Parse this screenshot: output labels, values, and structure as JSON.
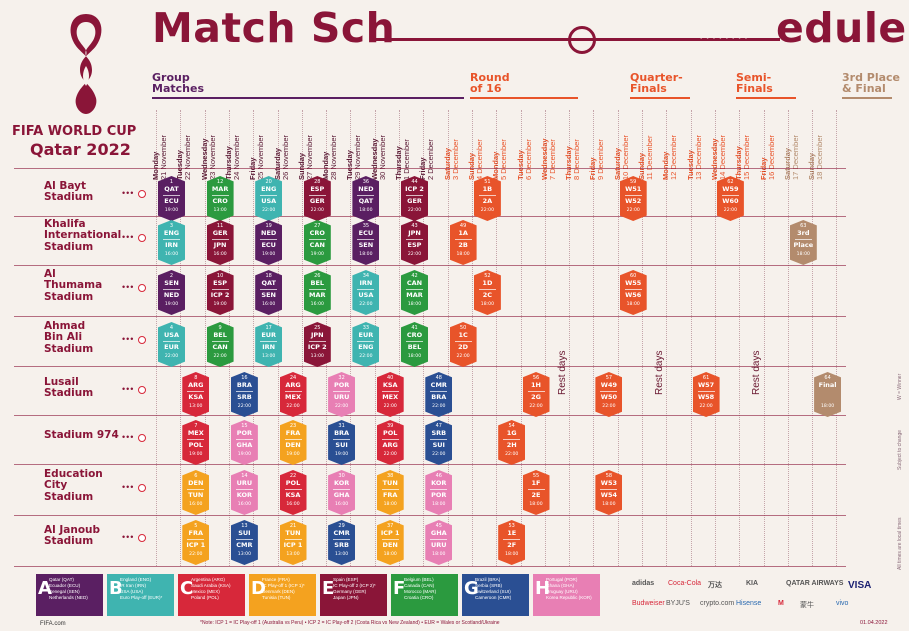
{
  "header": {
    "title_left": "Match Sch",
    "title_right": "edule",
    "dots": "• • • • • • • •",
    "tournament": "FIFA WORLD CUP",
    "host": "Qatar 2022"
  },
  "stages": [
    {
      "label": "Group\nMatches",
      "color": "#5a1f62"
    },
    {
      "label": "Round\nof 16",
      "color": "#e8542a"
    },
    {
      "label": "Quarter-\nFinals",
      "color": "#e8542a"
    },
    {
      "label": "Semi-\nFinals",
      "color": "#e8542a"
    },
    {
      "label": "3rd Place\n& Final",
      "color": "#b38b6d"
    }
  ],
  "dates": [
    {
      "day": "Monday",
      "date": "21 November"
    },
    {
      "day": "Tuesday",
      "date": "22 November"
    },
    {
      "day": "Wednesday",
      "date": "23 November"
    },
    {
      "day": "Thursday",
      "date": "24 November"
    },
    {
      "day": "Friday",
      "date": "25 November"
    },
    {
      "day": "Saturday",
      "date": "26 November"
    },
    {
      "day": "Sunday",
      "date": "27 November"
    },
    {
      "day": "Monday",
      "date": "28 November"
    },
    {
      "day": "Tuesday",
      "date": "29 November"
    },
    {
      "day": "Wednesday",
      "date": "30 November"
    },
    {
      "day": "Thursday",
      "date": "1 December"
    },
    {
      "day": "Friday",
      "date": "2 December"
    },
    {
      "day": "Saturday",
      "date": "3 December"
    },
    {
      "day": "Sunday",
      "date": "4 December"
    },
    {
      "day": "Monday",
      "date": "5 December"
    },
    {
      "day": "Tuesday",
      "date": "6 December"
    },
    {
      "day": "Wednesday",
      "date": "7 December"
    },
    {
      "day": "Thursday",
      "date": "8 December"
    },
    {
      "day": "Friday",
      "date": "9 December"
    },
    {
      "day": "Saturday",
      "date": "10 December"
    },
    {
      "day": "Sunday",
      "date": "11 December"
    },
    {
      "day": "Monday",
      "date": "12 December"
    },
    {
      "day": "Tuesday",
      "date": "13 December"
    },
    {
      "day": "Wednesday",
      "date": "14 December"
    },
    {
      "day": "Thursday",
      "date": "15 December"
    },
    {
      "day": "Friday",
      "date": "16 December"
    },
    {
      "day": "Saturday",
      "date": "17 December"
    },
    {
      "day": "Sunday",
      "date": "18 December"
    }
  ],
  "venues": [
    "Al Bayt\nStadium",
    "Khalifa\nInternational\nStadium",
    "Al\nThumama\nStadium",
    "Ahmad\nBin Ali\nStadium",
    "Lusail\nStadium",
    "Stadium 974",
    "Education\nCity\nStadium",
    "Al Janoub\nStadium"
  ],
  "rest_label": "Rest days",
  "colors": {
    "A": "#5a1f62",
    "B": "#3fb4b0",
    "C": "#d7283a",
    "D": "#f4a21f",
    "E": "#8a1538",
    "F": "#2b9a3f",
    "G": "#2a4f93",
    "H": "#e87fb4",
    "KO": "#e8542a",
    "F3": "#b38b6d"
  },
  "matches": [
    {
      "v": 0,
      "d": 0,
      "g": "A",
      "n": "1",
      "t1": "QAT",
      "t2": "ECU",
      "time": "19:00"
    },
    {
      "v": 0,
      "d": 2,
      "g": "F",
      "n": "12",
      "t1": "MAR",
      "t2": "CRO",
      "time": "13:00"
    },
    {
      "v": 0,
      "d": 4,
      "g": "B",
      "n": "20",
      "t1": "ENG",
      "t2": "USA",
      "time": "22:00"
    },
    {
      "v": 0,
      "d": 6,
      "g": "E",
      "n": "28",
      "t1": "ESP",
      "t2": "GER",
      "time": "22:00"
    },
    {
      "v": 0,
      "d": 8,
      "g": "A",
      "n": "36",
      "t1": "NED",
      "t2": "QAT",
      "time": "18:00"
    },
    {
      "v": 0,
      "d": 10,
      "g": "E",
      "n": "44",
      "t1": "ICP 2",
      "t2": "GER",
      "time": "22:00"
    },
    {
      "v": 0,
      "d": 13,
      "g": "KO",
      "n": "51",
      "t1": "1B",
      "t2": "2A",
      "time": "22:00"
    },
    {
      "v": 0,
      "d": 19,
      "g": "KO",
      "n": "59",
      "t1": "W51",
      "t2": "W52",
      "time": "22:00"
    },
    {
      "v": 0,
      "d": 23,
      "g": "KO",
      "n": "62",
      "t1": "W59",
      "t2": "W60",
      "time": "22:00"
    },
    {
      "v": 1,
      "d": 0,
      "g": "B",
      "n": "3",
      "t1": "ENG",
      "t2": "IRN",
      "time": "16:00"
    },
    {
      "v": 1,
      "d": 2,
      "g": "E",
      "n": "11",
      "t1": "GER",
      "t2": "JPN",
      "time": "16:00"
    },
    {
      "v": 1,
      "d": 4,
      "g": "A",
      "n": "19",
      "t1": "NED",
      "t2": "ECU",
      "time": "19:00"
    },
    {
      "v": 1,
      "d": 6,
      "g": "F",
      "n": "27",
      "t1": "CRO",
      "t2": "CAN",
      "time": "19:00"
    },
    {
      "v": 1,
      "d": 8,
      "g": "A",
      "n": "35",
      "t1": "ECU",
      "t2": "SEN",
      "time": "18:00"
    },
    {
      "v": 1,
      "d": 10,
      "g": "E",
      "n": "43",
      "t1": "JPN",
      "t2": "ESP",
      "time": "22:00"
    },
    {
      "v": 1,
      "d": 12,
      "g": "KO",
      "n": "49",
      "t1": "1A",
      "t2": "2B",
      "time": "18:00"
    },
    {
      "v": 1,
      "d": 26,
      "g": "F3",
      "n": "63",
      "t1": "3rd",
      "t2": "Place",
      "time": "18:00"
    },
    {
      "v": 2,
      "d": 0,
      "g": "A",
      "n": "2",
      "t1": "SEN",
      "t2": "NED",
      "time": "19:00"
    },
    {
      "v": 2,
      "d": 2,
      "g": "E",
      "n": "10",
      "t1": "ESP",
      "t2": "ICP 2",
      "time": "19:00"
    },
    {
      "v": 2,
      "d": 4,
      "g": "A",
      "n": "18",
      "t1": "QAT",
      "t2": "SEN",
      "time": "16:00"
    },
    {
      "v": 2,
      "d": 6,
      "g": "F",
      "n": "26",
      "t1": "BEL",
      "t2": "MAR",
      "time": "16:00"
    },
    {
      "v": 2,
      "d": 8,
      "g": "B",
      "n": "34",
      "t1": "IRN",
      "t2": "USA",
      "time": "22:00"
    },
    {
      "v": 2,
      "d": 10,
      "g": "F",
      "n": "42",
      "t1": "CAN",
      "t2": "MAR",
      "time": "18:00"
    },
    {
      "v": 2,
      "d": 13,
      "g": "KO",
      "n": "52",
      "t1": "1D",
      "t2": "2C",
      "time": "18:00"
    },
    {
      "v": 2,
      "d": 19,
      "g": "KO",
      "n": "60",
      "t1": "W55",
      "t2": "W56",
      "time": "18:00"
    },
    {
      "v": 3,
      "d": 0,
      "g": "B",
      "n": "4",
      "t1": "USA",
      "t2": "EUR",
      "time": "22:00"
    },
    {
      "v": 3,
      "d": 2,
      "g": "F",
      "n": "9",
      "t1": "BEL",
      "t2": "CAN",
      "time": "22:00"
    },
    {
      "v": 3,
      "d": 4,
      "g": "B",
      "n": "17",
      "t1": "EUR",
      "t2": "IRN",
      "time": "13:00"
    },
    {
      "v": 3,
      "d": 6,
      "g": "E",
      "n": "25",
      "t1": "JPN",
      "t2": "ICP 2",
      "time": "13:00"
    },
    {
      "v": 3,
      "d": 8,
      "g": "B",
      "n": "33",
      "t1": "EUR",
      "t2": "ENG",
      "time": "22:00"
    },
    {
      "v": 3,
      "d": 10,
      "g": "F",
      "n": "41",
      "t1": "CRO",
      "t2": "BEL",
      "time": "18:00"
    },
    {
      "v": 3,
      "d": 12,
      "g": "KO",
      "n": "50",
      "t1": "1C",
      "t2": "2D",
      "time": "22:00"
    },
    {
      "v": 4,
      "d": 1,
      "g": "C",
      "n": "8",
      "t1": "ARG",
      "t2": "KSA",
      "time": "13:00"
    },
    {
      "v": 4,
      "d": 3,
      "g": "G",
      "n": "16",
      "t1": "BRA",
      "t2": "SRB",
      "time": "22:00"
    },
    {
      "v": 4,
      "d": 5,
      "g": "C",
      "n": "24",
      "t1": "ARG",
      "t2": "MEX",
      "time": "22:00"
    },
    {
      "v": 4,
      "d": 7,
      "g": "H",
      "n": "32",
      "t1": "POR",
      "t2": "URU",
      "time": "22:00"
    },
    {
      "v": 4,
      "d": 9,
      "g": "C",
      "n": "40",
      "t1": "KSA",
      "t2": "MEX",
      "time": "22:00"
    },
    {
      "v": 4,
      "d": 11,
      "g": "G",
      "n": "48",
      "t1": "CMR",
      "t2": "BRA",
      "time": "22:00"
    },
    {
      "v": 4,
      "d": 15,
      "g": "KO",
      "n": "56",
      "t1": "1H",
      "t2": "2G",
      "time": "22:00"
    },
    {
      "v": 4,
      "d": 18,
      "g": "KO",
      "n": "57",
      "t1": "W49",
      "t2": "W50",
      "time": "22:00"
    },
    {
      "v": 4,
      "d": 22,
      "g": "KO",
      "n": "61",
      "t1": "W57",
      "t2": "W58",
      "time": "22:00"
    },
    {
      "v": 4,
      "d": 27,
      "g": "F3",
      "n": "64",
      "t1": "Final",
      "t2": "",
      "time": "18:00"
    },
    {
      "v": 5,
      "d": 1,
      "g": "C",
      "n": "7",
      "t1": "MEX",
      "t2": "POL",
      "time": "19:00"
    },
    {
      "v": 5,
      "d": 3,
      "g": "H",
      "n": "15",
      "t1": "POR",
      "t2": "GHA",
      "time": "19:00"
    },
    {
      "v": 5,
      "d": 5,
      "g": "D",
      "n": "23",
      "t1": "FRA",
      "t2": "DEN",
      "time": "19:00"
    },
    {
      "v": 5,
      "d": 7,
      "g": "G",
      "n": "31",
      "t1": "BRA",
      "t2": "SUI",
      "time": "19:00"
    },
    {
      "v": 5,
      "d": 9,
      "g": "C",
      "n": "39",
      "t1": "POL",
      "t2": "ARG",
      "time": "22:00"
    },
    {
      "v": 5,
      "d": 11,
      "g": "G",
      "n": "47",
      "t1": "SRB",
      "t2": "SUI",
      "time": "22:00"
    },
    {
      "v": 5,
      "d": 14,
      "g": "KO",
      "n": "54",
      "t1": "1G",
      "t2": "2H",
      "time": "22:00"
    },
    {
      "v": 6,
      "d": 1,
      "g": "D",
      "n": "6",
      "t1": "DEN",
      "t2": "TUN",
      "time": "16:00"
    },
    {
      "v": 6,
      "d": 3,
      "g": "H",
      "n": "14",
      "t1": "URU",
      "t2": "KOR",
      "time": "16:00"
    },
    {
      "v": 6,
      "d": 5,
      "g": "C",
      "n": "22",
      "t1": "POL",
      "t2": "KSA",
      "time": "16:00"
    },
    {
      "v": 6,
      "d": 7,
      "g": "H",
      "n": "30",
      "t1": "KOR",
      "t2": "GHA",
      "time": "16:00"
    },
    {
      "v": 6,
      "d": 9,
      "g": "D",
      "n": "38",
      "t1": "TUN",
      "t2": "FRA",
      "time": "18:00"
    },
    {
      "v": 6,
      "d": 11,
      "g": "H",
      "n": "46",
      "t1": "KOR",
      "t2": "POR",
      "time": "18:00"
    },
    {
      "v": 6,
      "d": 15,
      "g": "KO",
      "n": "55",
      "t1": "1F",
      "t2": "2E",
      "time": "18:00"
    },
    {
      "v": 6,
      "d": 18,
      "g": "KO",
      "n": "58",
      "t1": "W53",
      "t2": "W54",
      "time": "18:00"
    },
    {
      "v": 7,
      "d": 1,
      "g": "D",
      "n": "5",
      "t1": "FRA",
      "t2": "ICP 1",
      "time": "22:00"
    },
    {
      "v": 7,
      "d": 3,
      "g": "G",
      "n": "13",
      "t1": "SUI",
      "t2": "CMR",
      "time": "13:00"
    },
    {
      "v": 7,
      "d": 5,
      "g": "D",
      "n": "21",
      "t1": "TUN",
      "t2": "ICP 1",
      "time": "13:00"
    },
    {
      "v": 7,
      "d": 7,
      "g": "G",
      "n": "29",
      "t1": "CMR",
      "t2": "SRB",
      "time": "13:00"
    },
    {
      "v": 7,
      "d": 9,
      "g": "D",
      "n": "37",
      "t1": "ICP 1",
      "t2": "DEN",
      "time": "18:00"
    },
    {
      "v": 7,
      "d": 11,
      "g": "H",
      "n": "45",
      "t1": "GHA",
      "t2": "URU",
      "time": "18:00"
    },
    {
      "v": 7,
      "d": 14,
      "g": "KO",
      "n": "53",
      "t1": "1E",
      "t2": "2F",
      "time": "18:00"
    }
  ],
  "legend": [
    {
      "g": "A",
      "text": "Qatar (QAT)\nEcuador (ECU)\nSenegal (SEN)\nNetherlands (NED)"
    },
    {
      "g": "B",
      "text": "England (ENG)\nIR Iran (IRN)\nUSA (USA)\nEuro Play-off (EUR)*"
    },
    {
      "g": "C",
      "text": "Argentina (ARG)\nSaudi Arabia (KSA)\nMexico (MEX)\nPoland (POL)"
    },
    {
      "g": "D",
      "text": "France (FRA)\nIC Play-off 1 (ICP 1)*\nDenmark (DEN)\nTunisia (TUN)"
    },
    {
      "g": "E",
      "text": "Spain (ESP)\nIC Play-off 2 (ICP 2)*\nGermany (GER)\nJapan (JPN)"
    },
    {
      "g": "F",
      "text": "Belgium (BEL)\nCanada (CAN)\nMorocco (MAR)\nCroatia (CRO)"
    },
    {
      "g": "G",
      "text": "Brazil (BRA)\nSerbia (SRB)\nSwitzerland (SUI)\nCameroon (CMR)"
    },
    {
      "g": "H",
      "text": "Portugal (POR)\nGhana (GHA)\nUruguay (URU)\nKorea Republic (KOR)"
    }
  ],
  "sponsors": [
    "adidas",
    "Coca-Cola",
    "万达",
    "KIA",
    "QATAR AIRWAYS",
    "VISA",
    "Budweiser",
    "BYJU'S",
    "crypto.com",
    "Hisense",
    "M",
    "蒙牛",
    "vivo"
  ],
  "side_notes": [
    "W = Winner",
    "Subject to change",
    "All times are local times"
  ],
  "footer": {
    "note": "*Note: ICP 1 = IC Play-off 1 (Australia vs Peru) • ICP 2 = IC Play-off 2 (Costa Rica vs New Zealand) • EUR = Wales or Scotland/Ukraine",
    "fifa": "FIFA.com",
    "date": "01.04.2022"
  }
}
